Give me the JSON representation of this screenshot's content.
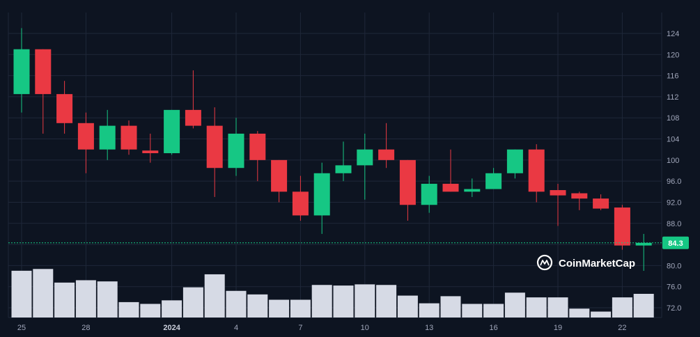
{
  "chart_data": {
    "type": "candlestick",
    "title": "",
    "xlabel": "",
    "ylabel": "",
    "ylim": [
      70,
      127
    ],
    "y_ticks": [
      "124",
      "120",
      "116",
      "112",
      "108",
      "104",
      "100",
      "96.0",
      "92.0",
      "88.0",
      "84.0",
      "80.0",
      "76.0",
      "72.0"
    ],
    "y_tick_values": [
      124,
      120,
      116,
      112,
      108,
      104,
      100,
      96,
      92,
      88,
      84,
      80,
      76,
      72
    ],
    "x_ticks": [
      {
        "label": "25",
        "index": 0,
        "bold": false
      },
      {
        "label": "28",
        "index": 3,
        "bold": false
      },
      {
        "label": "2024",
        "index": 7,
        "bold": true
      },
      {
        "label": "4",
        "index": 10,
        "bold": false
      },
      {
        "label": "7",
        "index": 13,
        "bold": false
      },
      {
        "label": "10",
        "index": 16,
        "bold": false
      },
      {
        "label": "13",
        "index": 19,
        "bold": false
      },
      {
        "label": "16",
        "index": 22,
        "bold": false
      },
      {
        "label": "19",
        "index": 25,
        "bold": false
      },
      {
        "label": "22",
        "index": 28,
        "bold": false
      }
    ],
    "candles": [
      {
        "open": 112.5,
        "high": 125.0,
        "low": 109.0,
        "close": 121.0
      },
      {
        "open": 121.0,
        "high": 121.0,
        "low": 105.0,
        "close": 112.5
      },
      {
        "open": 112.5,
        "high": 115.0,
        "low": 105.0,
        "close": 107.0
      },
      {
        "open": 107.0,
        "high": 109.0,
        "low": 97.5,
        "close": 102.0
      },
      {
        "open": 102.0,
        "high": 109.5,
        "low": 100.0,
        "close": 106.5
      },
      {
        "open": 106.5,
        "high": 107.5,
        "low": 101.0,
        "close": 102.0
      },
      {
        "open": 101.8,
        "high": 105.0,
        "low": 99.5,
        "close": 101.3
      },
      {
        "open": 101.3,
        "high": 109.5,
        "low": 101.0,
        "close": 109.5
      },
      {
        "open": 109.5,
        "high": 117.0,
        "low": 106.0,
        "close": 106.5
      },
      {
        "open": 106.5,
        "high": 110.0,
        "low": 93.0,
        "close": 98.5
      },
      {
        "open": 98.5,
        "high": 108.0,
        "low": 97.0,
        "close": 105.0
      },
      {
        "open": 105.0,
        "high": 105.5,
        "low": 96.0,
        "close": 100.0
      },
      {
        "open": 100.0,
        "high": 100.0,
        "low": 92.0,
        "close": 94.0
      },
      {
        "open": 94.0,
        "high": 97.0,
        "low": 88.5,
        "close": 89.5
      },
      {
        "open": 89.5,
        "high": 99.5,
        "low": 86.0,
        "close": 97.5
      },
      {
        "open": 97.5,
        "high": 103.5,
        "low": 96.0,
        "close": 99.0
      },
      {
        "open": 99.0,
        "high": 105.0,
        "low": 92.5,
        "close": 102.0
      },
      {
        "open": 102.0,
        "high": 107.0,
        "low": 98.5,
        "close": 100.0
      },
      {
        "open": 100.0,
        "high": 100.0,
        "low": 88.5,
        "close": 91.5
      },
      {
        "open": 91.5,
        "high": 97.0,
        "low": 90.0,
        "close": 95.5
      },
      {
        "open": 95.5,
        "high": 102.0,
        "low": 94.0,
        "close": 94.0
      },
      {
        "open": 94.0,
        "high": 96.5,
        "low": 93.0,
        "close": 94.5
      },
      {
        "open": 94.5,
        "high": 98.5,
        "low": 94.5,
        "close": 97.5
      },
      {
        "open": 97.5,
        "high": 102.0,
        "low": 96.5,
        "close": 102.0
      },
      {
        "open": 102.0,
        "high": 103.0,
        "low": 92.0,
        "close": 94.0
      },
      {
        "open": 94.3,
        "high": 95.5,
        "low": 87.5,
        "close": 93.3
      },
      {
        "open": 93.7,
        "high": 94.0,
        "low": 90.5,
        "close": 92.7
      },
      {
        "open": 92.7,
        "high": 93.5,
        "low": 90.5,
        "close": 90.8
      },
      {
        "open": 91.0,
        "high": 91.5,
        "low": 83.0,
        "close": 83.8
      },
      {
        "open": 83.8,
        "high": 86.0,
        "low": 79.0,
        "close": 84.3
      }
    ],
    "volumes": [
      0.79,
      0.82,
      0.59,
      0.63,
      0.61,
      0.26,
      0.23,
      0.29,
      0.51,
      0.73,
      0.45,
      0.39,
      0.3,
      0.3,
      0.55,
      0.54,
      0.56,
      0.55,
      0.37,
      0.24,
      0.36,
      0.23,
      0.23,
      0.42,
      0.34,
      0.34,
      0.15,
      0.1,
      0.34,
      0.4
    ],
    "current_price": "84.3",
    "colors": {
      "up": "#16c784",
      "down": "#ea3943",
      "volume": "#d6dae5",
      "background": "#0d1421",
      "grid": "#1f2739",
      "price_line": "#16c784"
    },
    "grid": true
  },
  "watermark": {
    "text": "CoinMarketCap",
    "icon": "coinmarketcap-logo-icon"
  }
}
